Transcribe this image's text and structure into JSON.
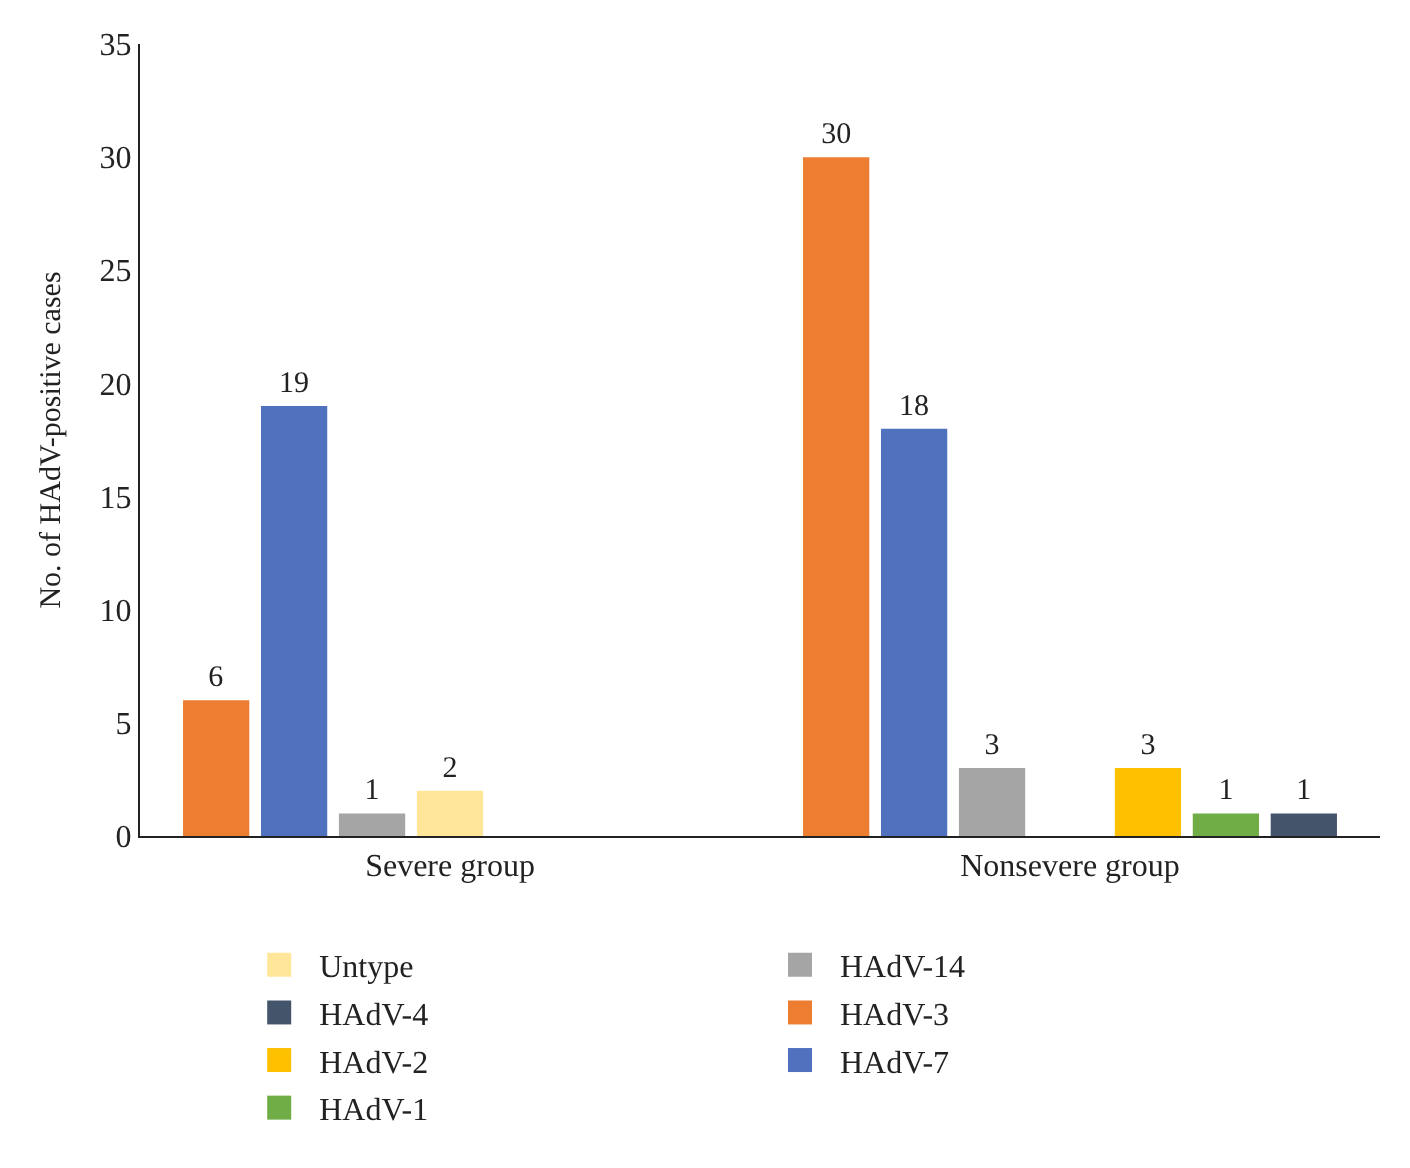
{
  "chart_data": {
    "type": "bar",
    "ylabel": "No. of HAdV-positive cases",
    "categories": [
      "Severe group",
      "Nonsevere group"
    ],
    "series": [
      {
        "name": "HAdV-3",
        "color": "#ed7d31",
        "values": [
          6,
          30
        ]
      },
      {
        "name": "HAdV-7",
        "color": "#4f71be",
        "values": [
          19,
          18
        ]
      },
      {
        "name": "HAdV-14",
        "color": "#a5a5a5",
        "values": [
          1,
          3
        ]
      },
      {
        "name": "Untype",
        "color": "#ffe699",
        "values": [
          2,
          null
        ]
      },
      {
        "name": "HAdV-2",
        "color": "#ffc000",
        "values": [
          null,
          3
        ]
      },
      {
        "name": "HAdV-1",
        "color": "#70ad47",
        "values": [
          null,
          1
        ]
      },
      {
        "name": "HAdV-4",
        "color": "#44546a",
        "values": [
          null,
          1
        ]
      }
    ],
    "ylim": [
      0,
      35
    ],
    "yticks": [
      0,
      5,
      10,
      15,
      20,
      25,
      30,
      35
    ],
    "grid": false,
    "data_labels": true,
    "legend": "bottom"
  }
}
